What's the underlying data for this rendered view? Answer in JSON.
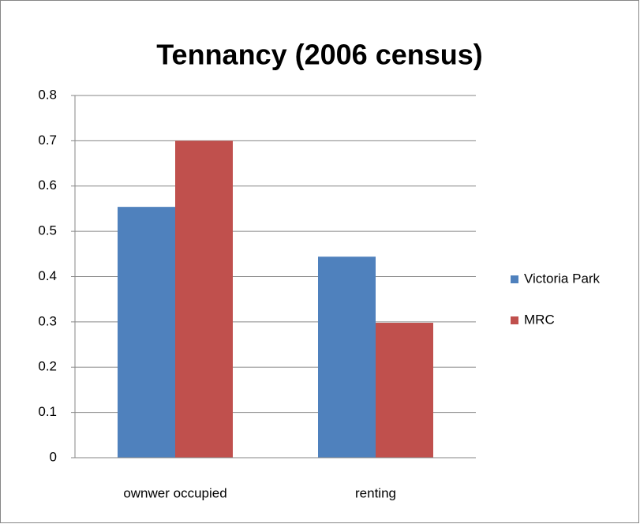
{
  "chart_data": {
    "type": "bar",
    "title": "Tennancy (2006 census)",
    "categories": [
      "ownwer occupied",
      "renting"
    ],
    "series": [
      {
        "name": "Victoria Park",
        "color": "#4f81bd",
        "values": [
          0.554,
          0.444
        ]
      },
      {
        "name": "MRC",
        "color": "#c0504d",
        "values": [
          0.7,
          0.298
        ]
      }
    ],
    "ylim": [
      0,
      0.8
    ],
    "yticks": [
      0,
      0.1,
      0.2,
      0.3,
      0.4,
      0.5,
      0.6,
      0.7,
      0.8
    ],
    "grid": true,
    "legend": "right"
  }
}
